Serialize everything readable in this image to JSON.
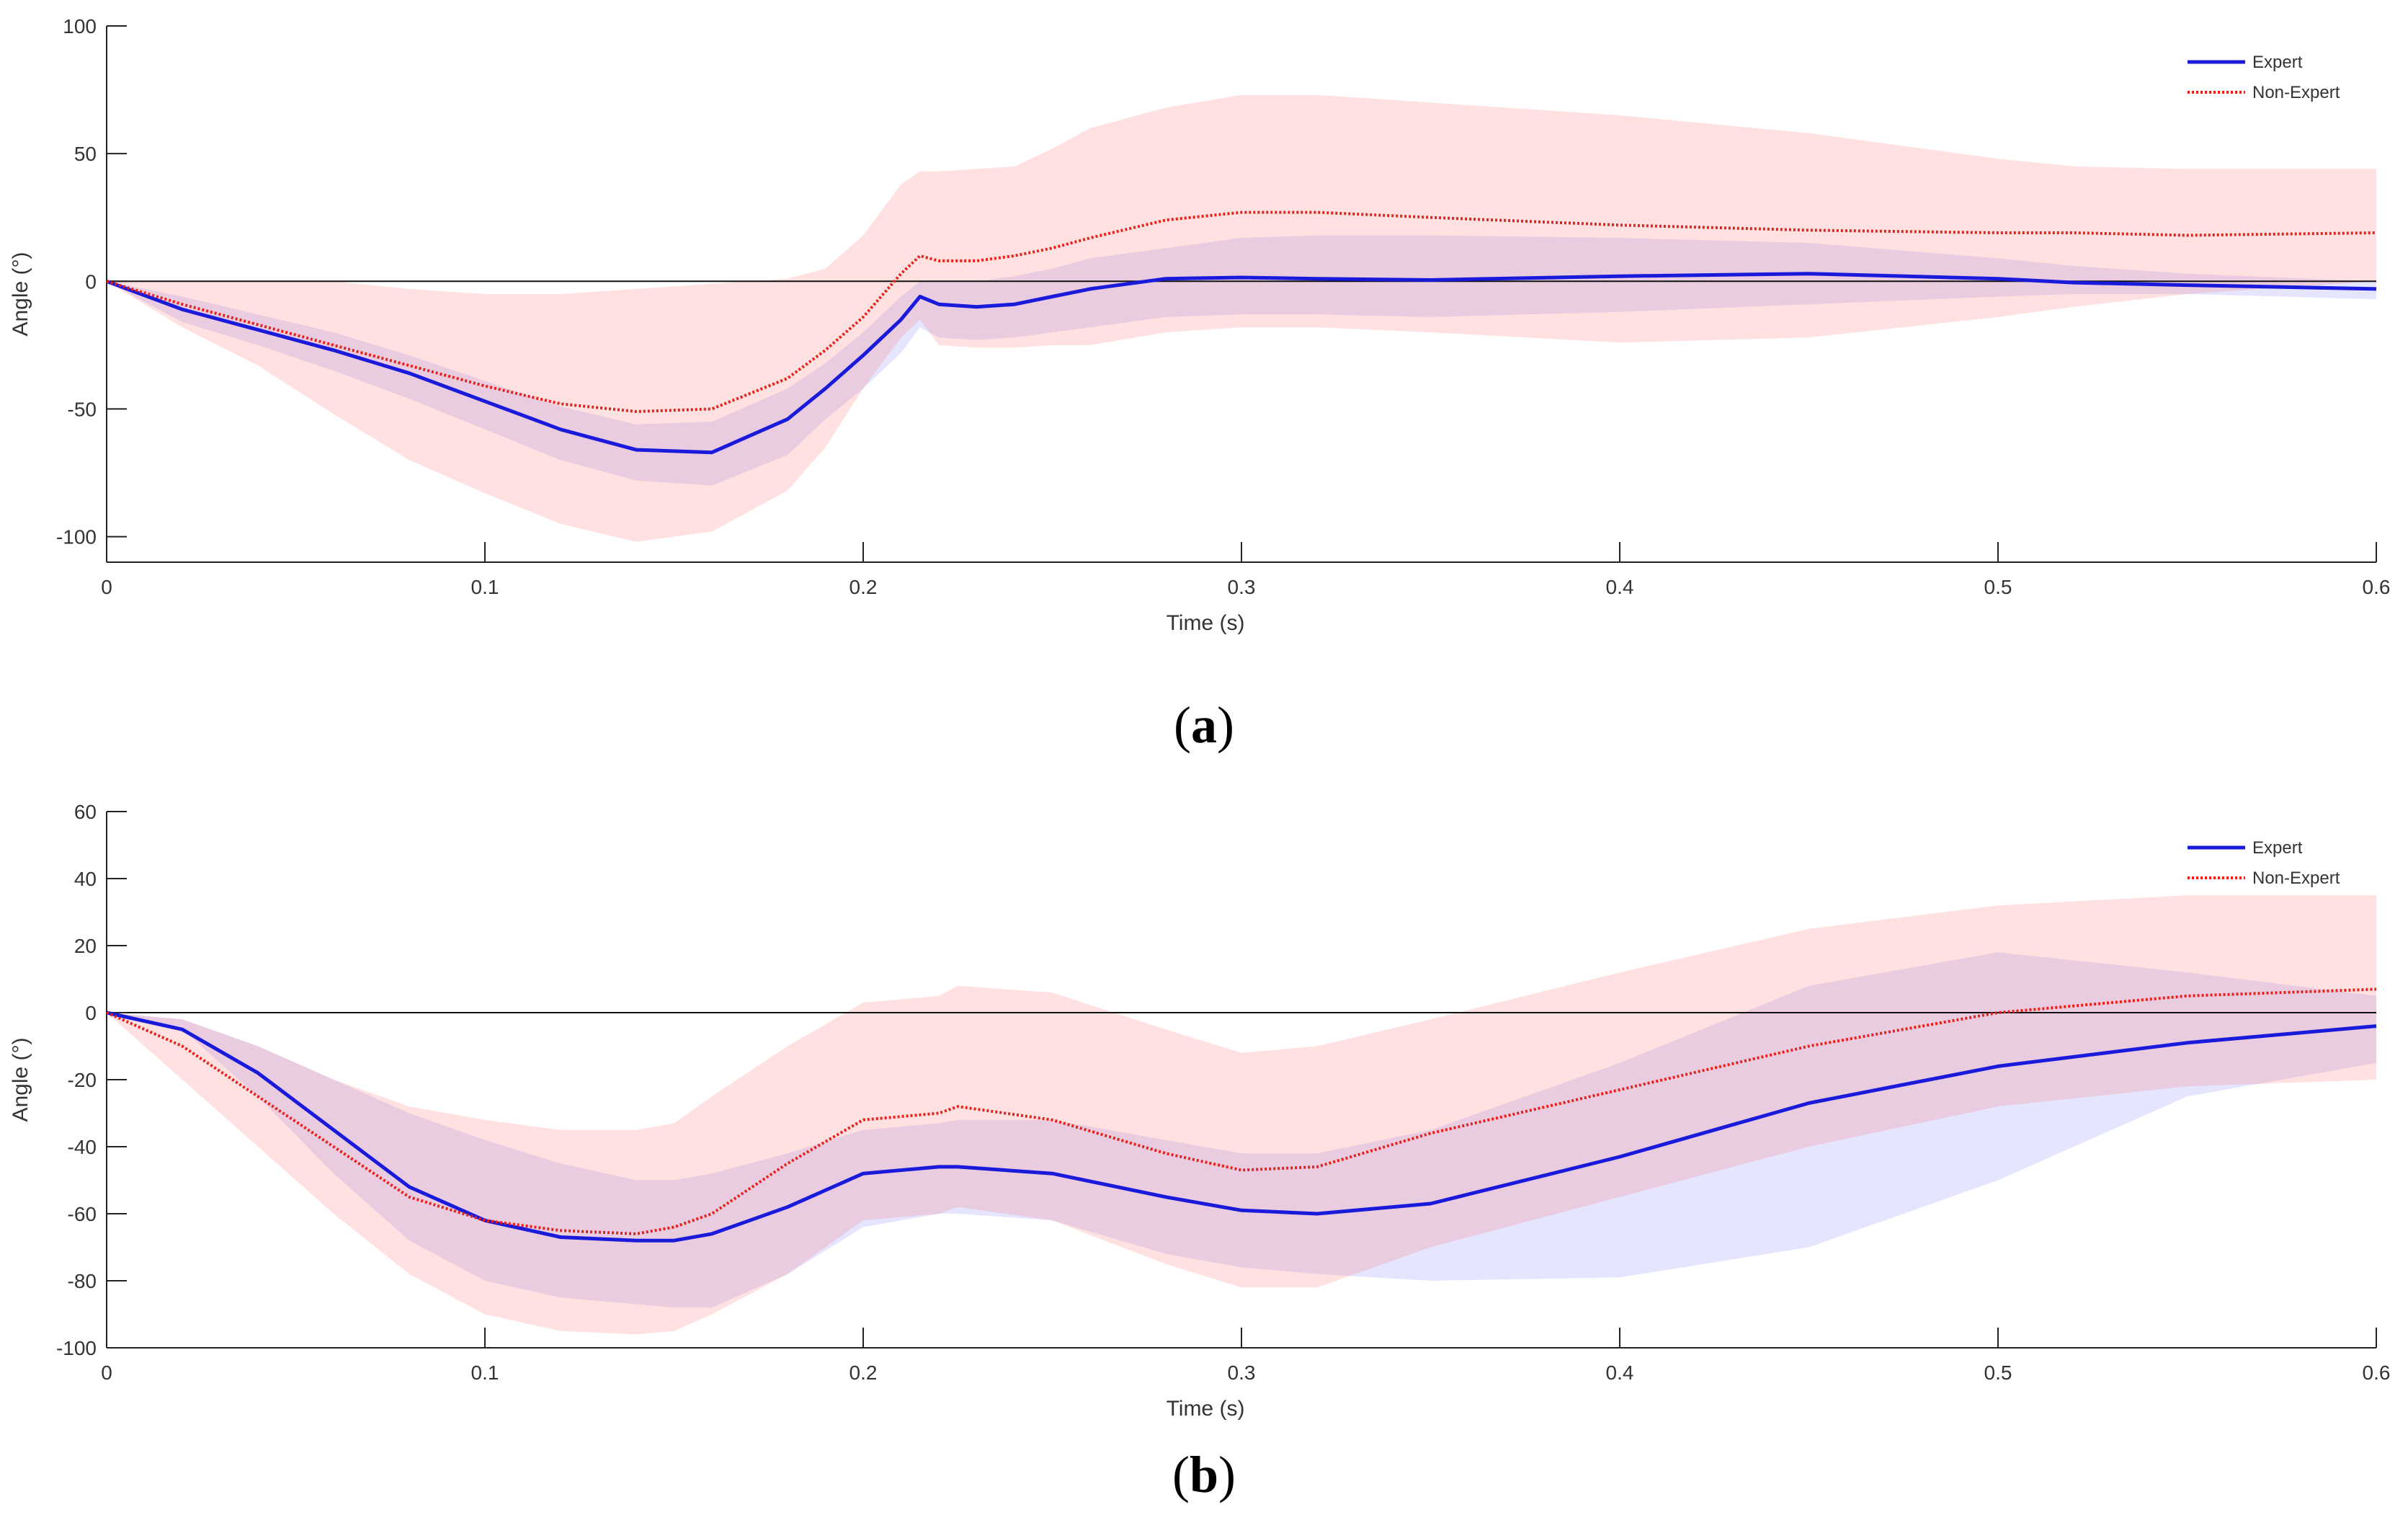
{
  "chart_data": [
    {
      "type": "line",
      "panel": "a",
      "caption": "a",
      "title": "",
      "xlabel": "Time (s)",
      "ylabel": "Angle (°)",
      "xlim": [
        0,
        0.6
      ],
      "ylim": [
        -110,
        100
      ],
      "xticks": [
        0,
        0.1,
        0.2,
        0.3,
        0.4,
        0.5,
        0.6
      ],
      "xtick_labels": [
        "0",
        "0.1",
        "0.2",
        "0.3",
        "0.4",
        "0.5",
        "0.6"
      ],
      "yticks": [
        -100,
        -50,
        0,
        50,
        100
      ],
      "ytick_labels": [
        "-100",
        "-50",
        "0",
        "50",
        "100"
      ],
      "zero_line": true,
      "legend_position": "top-right",
      "x": [
        0,
        0.02,
        0.04,
        0.06,
        0.08,
        0.1,
        0.12,
        0.14,
        0.16,
        0.18,
        0.19,
        0.2,
        0.21,
        0.215,
        0.22,
        0.23,
        0.24,
        0.25,
        0.26,
        0.28,
        0.3,
        0.32,
        0.35,
        0.4,
        0.45,
        0.5,
        0.52,
        0.55,
        0.6
      ],
      "series": [
        {
          "name": "Expert",
          "color": "#1a1adb",
          "style": "solid",
          "values": [
            0,
            -11,
            -19,
            -27,
            -36,
            -47,
            -58,
            -66,
            -67,
            -54,
            -42,
            -29,
            -15,
            -6,
            -9,
            -10,
            -9,
            -6,
            -3,
            1,
            1.5,
            1,
            0.5,
            2,
            3,
            1,
            -0.5,
            -1.5,
            -3
          ],
          "upper": [
            0,
            -6,
            -13,
            -20,
            -29,
            -39,
            -49,
            -56,
            -55,
            -42,
            -32,
            -20,
            -6,
            0,
            0,
            0,
            2,
            5,
            9,
            13,
            17,
            18,
            18,
            17,
            15,
            9,
            6,
            3,
            0
          ],
          "lower": [
            0,
            -16,
            -25,
            -35,
            -46,
            -58,
            -70,
            -78,
            -80,
            -68,
            -54,
            -42,
            -28,
            -18,
            -22,
            -23,
            -22,
            -20,
            -18,
            -14,
            -13,
            -13,
            -14,
            -12,
            -9,
            -6,
            -5,
            -5,
            -7
          ]
        },
        {
          "name": "Non-Expert",
          "color": "#e8201a",
          "style": "dotted",
          "values": [
            0,
            -9,
            -17,
            -25,
            -33,
            -41,
            -48,
            -51,
            -50,
            -38,
            -27,
            -14,
            3,
            10,
            8,
            8,
            10,
            13,
            17,
            24,
            27,
            27,
            25,
            22,
            20,
            19,
            19,
            18,
            19
          ],
          "upper": [
            0,
            0,
            0,
            0,
            -3,
            -5,
            -5,
            -3,
            -1,
            1,
            5,
            18,
            38,
            43,
            43,
            44,
            45,
            52,
            60,
            68,
            73,
            73,
            70,
            65,
            58,
            48,
            45,
            44,
            44
          ],
          "lower": [
            0,
            -18,
            -33,
            -52,
            -70,
            -83,
            -95,
            -102,
            -98,
            -82,
            -65,
            -42,
            -22,
            -15,
            -25,
            -26,
            -26,
            -25,
            -25,
            -20,
            -18,
            -18,
            -20,
            -24,
            -22,
            -14,
            -10,
            -5,
            0
          ]
        }
      ]
    },
    {
      "type": "line",
      "panel": "b",
      "caption": "b",
      "title": "",
      "xlabel": "Time (s)",
      "ylabel": "Angle (°)",
      "xlim": [
        0,
        0.6
      ],
      "ylim": [
        -100,
        60
      ],
      "xticks": [
        0,
        0.1,
        0.2,
        0.3,
        0.4,
        0.5,
        0.6
      ],
      "xtick_labels": [
        "0",
        "0.1",
        "0.2",
        "0.3",
        "0.4",
        "0.5",
        "0.6"
      ],
      "yticks": [
        -100,
        -80,
        -60,
        -40,
        -20,
        0,
        20,
        40,
        60
      ],
      "ytick_labels": [
        "-100",
        "-80",
        "-60",
        "-40",
        "-20",
        "0",
        "20",
        "40",
        "60"
      ],
      "zero_line": true,
      "legend_position": "top-right",
      "x": [
        0,
        0.02,
        0.04,
        0.06,
        0.08,
        0.1,
        0.12,
        0.14,
        0.15,
        0.16,
        0.18,
        0.2,
        0.22,
        0.225,
        0.25,
        0.28,
        0.3,
        0.32,
        0.35,
        0.4,
        0.45,
        0.5,
        0.55,
        0.6
      ],
      "series": [
        {
          "name": "Expert",
          "color": "#1a1adb",
          "style": "solid",
          "values": [
            0,
            -5,
            -18,
            -35,
            -52,
            -62,
            -67,
            -68,
            -68,
            -66,
            -58,
            -48,
            -46,
            -46,
            -48,
            -55,
            -59,
            -60,
            -57,
            -43,
            -27,
            -16,
            -9,
            -4
          ],
          "upper": [
            0,
            -2,
            -10,
            -20,
            -30,
            -38,
            -45,
            -50,
            -50,
            -48,
            -42,
            -35,
            -33,
            -32,
            -32,
            -38,
            -42,
            -42,
            -35,
            -15,
            8,
            18,
            12,
            5
          ],
          "lower": [
            0,
            -5,
            -25,
            -48,
            -68,
            -80,
            -85,
            -87,
            -88,
            -88,
            -78,
            -64,
            -60,
            -60,
            -62,
            -72,
            -76,
            -78,
            -80,
            -79,
            -70,
            -50,
            -25,
            -15
          ]
        },
        {
          "name": "Non-Expert",
          "color": "#e8201a",
          "style": "dotted",
          "values": [
            0,
            -10,
            -25,
            -40,
            -55,
            -62,
            -65,
            -66,
            -64,
            -60,
            -45,
            -32,
            -30,
            -28,
            -32,
            -42,
            -47,
            -46,
            -36,
            -23,
            -10,
            0,
            5,
            7
          ],
          "upper": [
            0,
            -2,
            -10,
            -20,
            -28,
            -32,
            -35,
            -35,
            -33,
            -25,
            -10,
            3,
            5,
            8,
            6,
            -5,
            -12,
            -10,
            -2,
            12,
            25,
            32,
            35,
            35
          ],
          "lower": [
            0,
            -20,
            -40,
            -60,
            -78,
            -90,
            -95,
            -96,
            -95,
            -90,
            -78,
            -62,
            -60,
            -58,
            -62,
            -75,
            -82,
            -82,
            -70,
            -55,
            -40,
            -28,
            -22,
            -20
          ]
        }
      ]
    }
  ]
}
